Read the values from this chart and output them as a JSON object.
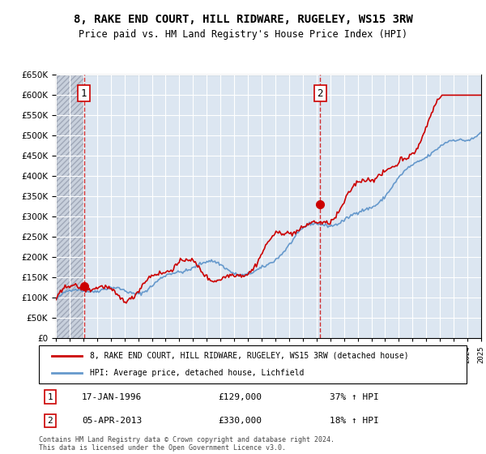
{
  "title": "8, RAKE END COURT, HILL RIDWARE, RUGELEY, WS15 3RW",
  "subtitle": "Price paid vs. HM Land Registry's House Price Index (HPI)",
  "xmin": 1994,
  "xmax": 2025,
  "ymin": 0,
  "ymax": 650000,
  "yticks": [
    0,
    50000,
    100000,
    150000,
    200000,
    250000,
    300000,
    350000,
    400000,
    450000,
    500000,
    550000,
    600000,
    650000
  ],
  "ytick_labels": [
    "£0",
    "£50K",
    "£100K",
    "£150K",
    "£200K",
    "£250K",
    "£300K",
    "£350K",
    "£400K",
    "£450K",
    "£500K",
    "£550K",
    "£600K",
    "£650K"
  ],
  "purchase1_x": 1996.04,
  "purchase1_y": 129000,
  "purchase2_x": 2013.27,
  "purchase2_y": 330000,
  "legend_line1": "8, RAKE END COURT, HILL RIDWARE, RUGELEY, WS15 3RW (detached house)",
  "legend_line2": "HPI: Average price, detached house, Lichfield",
  "annotation1_label": "1",
  "annotation1_date": "17-JAN-1996",
  "annotation1_price": "£129,000",
  "annotation1_hpi": "37% ↑ HPI",
  "annotation2_label": "2",
  "annotation2_date": "05-APR-2013",
  "annotation2_price": "£330,000",
  "annotation2_hpi": "18% ↑ HPI",
  "footer": "Contains HM Land Registry data © Crown copyright and database right 2024.\nThis data is licensed under the Open Government Licence v3.0.",
  "hatch_color": "#c8c8d8",
  "bg_color": "#dce6f1",
  "grid_color": "#ffffff",
  "line_red": "#cc0000",
  "line_blue": "#6699cc",
  "marker_red": "#cc0000"
}
